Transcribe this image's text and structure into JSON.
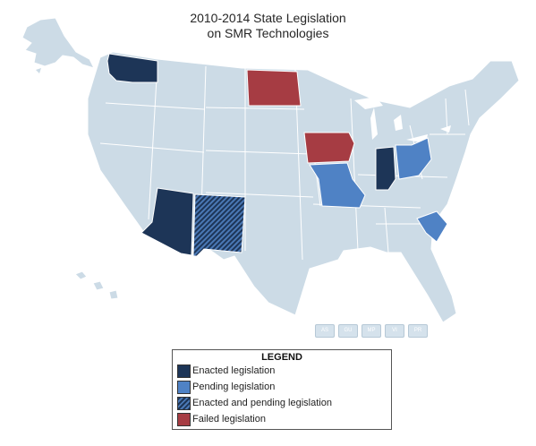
{
  "title": {
    "line1": "2010-2014 State Legislation",
    "line2": "on SMR Technologies"
  },
  "territories": [
    "AS",
    "GU",
    "MP",
    "VI",
    "PR"
  ],
  "legend": {
    "title": "LEGEND",
    "items": [
      {
        "label": "Enacted legislation",
        "color": "#1d3557",
        "pattern": "solid"
      },
      {
        "label": "Pending legislation",
        "color": "#4f82c5",
        "pattern": "solid"
      },
      {
        "label": "Enacted and pending legislation",
        "color": "#1d3557",
        "pattern": "hatched"
      },
      {
        "label": "Failed legislation",
        "color": "#a63c43",
        "pattern": "solid"
      }
    ]
  },
  "states": [
    {
      "state": "Washington",
      "status": "Enacted legislation"
    },
    {
      "state": "Arizona",
      "status": "Enacted legislation"
    },
    {
      "state": "Indiana",
      "status": "Enacted legislation"
    },
    {
      "state": "New Mexico",
      "status": "Enacted and pending legislation"
    },
    {
      "state": "Missouri",
      "status": "Pending legislation"
    },
    {
      "state": "Ohio",
      "status": "Pending legislation"
    },
    {
      "state": "South Carolina",
      "status": "Pending legislation"
    },
    {
      "state": "North Dakota",
      "status": "Failed legislation"
    },
    {
      "state": "Iowa",
      "status": "Failed legislation"
    }
  ],
  "colors": {
    "base": "#ccdbe6",
    "border": "#ffffff",
    "enacted": "#1d3557",
    "pending": "#4f82c5",
    "failed": "#a63c43"
  }
}
